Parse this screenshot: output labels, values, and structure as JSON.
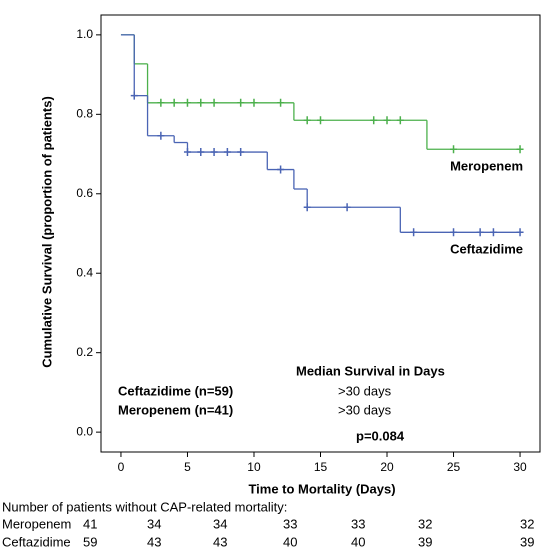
{
  "chart_data": {
    "type": "km-step",
    "xlabel": "Time to Mortality (Days)",
    "ylabel": "Cumulative Survival (proportion of patients)",
    "xlim": [
      -1.5,
      31.5
    ],
    "ylim": [
      -0.05,
      1.05
    ],
    "xticks": [
      0,
      5,
      10,
      15,
      20,
      25,
      30
    ],
    "yticks": [
      {
        "value": 0,
        "label": "0.0"
      },
      0.2,
      0.4,
      0.6,
      0.8,
      {
        "value": 1,
        "label": "1.0"
      }
    ],
    "series": [
      {
        "name": "Meropenem",
        "color": "#4cb04c",
        "x": [
          0,
          1,
          2,
          13,
          23
        ],
        "values": [
          1.0,
          0.927,
          0.829,
          0.785,
          0.712
        ],
        "censored": [
          3,
          4,
          5,
          6,
          7,
          9,
          10,
          12,
          14,
          15,
          19,
          20,
          21,
          25,
          30
        ]
      },
      {
        "name": "Ceftazidime",
        "color": "#4a64b4",
        "x": [
          0,
          1,
          2,
          4,
          5,
          11,
          13,
          14,
          21
        ],
        "values": [
          1.0,
          0.847,
          0.746,
          0.729,
          0.705,
          0.661,
          0.612,
          0.566,
          0.503
        ],
        "censored": [
          1,
          3,
          5,
          6,
          7,
          8,
          9,
          12,
          14,
          17,
          22,
          25,
          27,
          28,
          30
        ]
      }
    ],
    "annotations": {
      "median_title": "Median Survival in Days",
      "rows": [
        {
          "name": "Ceftazidime (n=59)",
          "median": ">30 days"
        },
        {
          "name": "Meropenem (n=41)",
          "median": ">30 days"
        }
      ],
      "p_value": "p=0.084"
    }
  },
  "risk_table": {
    "title": "Number of patients without CAP-related mortality:",
    "rows": [
      {
        "name": "Meropenem",
        "counts": [
          41,
          34,
          34,
          33,
          33,
          32,
          32
        ]
      },
      {
        "name": "Ceftazidime",
        "counts": [
          59,
          43,
          43,
          40,
          40,
          39,
          39
        ]
      }
    ]
  }
}
